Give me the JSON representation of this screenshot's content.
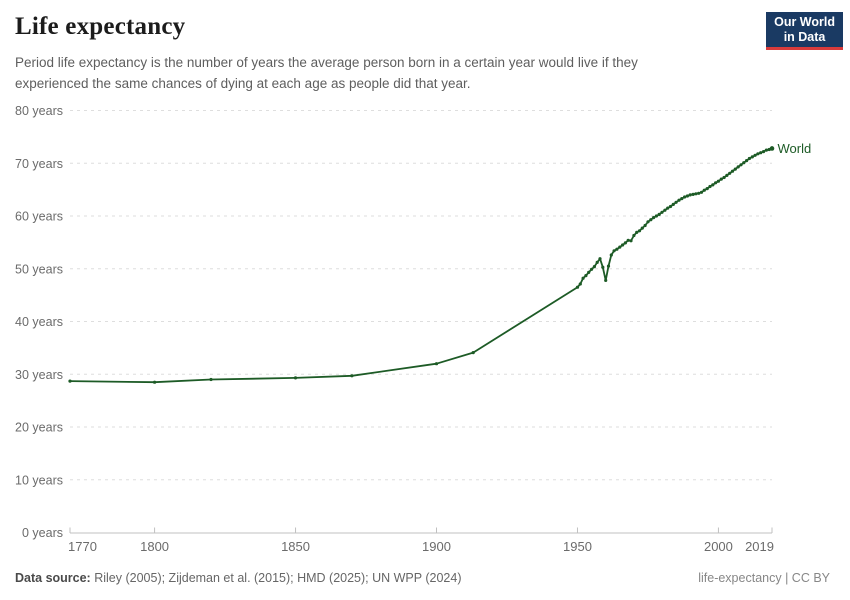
{
  "header": {
    "title": "Life expectancy",
    "subtitle_line1": "Period life expectancy is the number of years the average person born in a certain year would live if they",
    "subtitle_line2": "experienced the same chances of dying at each age as people did that year."
  },
  "logo": {
    "line1": "Our World",
    "line2": "in Data",
    "bg_color": "#1a3a63",
    "accent_color": "#d93b3b"
  },
  "colors": {
    "line": "#1d5b26",
    "grid": "#dedede",
    "axis": "#c0c0c0",
    "tick_label": "#6b6b6b",
    "title": "#1c1c1c",
    "subtitle": "#5e5e5e"
  },
  "chart_data": {
    "type": "line",
    "title": "Life expectancy",
    "xlabel": "",
    "ylabel": "",
    "xlim": [
      1770,
      2019
    ],
    "ylim": [
      0,
      80
    ],
    "grid": "horizontal-dashed",
    "legend_position": "end-of-line",
    "x_ticks": [
      {
        "value": 1770,
        "label": "1770"
      },
      {
        "value": 1800,
        "label": "1800"
      },
      {
        "value": 1850,
        "label": "1850"
      },
      {
        "value": 1900,
        "label": "1900"
      },
      {
        "value": 1950,
        "label": "1950"
      },
      {
        "value": 2000,
        "label": "2000"
      },
      {
        "value": 2019,
        "label": "2019"
      }
    ],
    "y_ticks": [
      {
        "value": 0,
        "label": "0 years"
      },
      {
        "value": 10,
        "label": "10 years"
      },
      {
        "value": 20,
        "label": "20 years"
      },
      {
        "value": 30,
        "label": "30 years"
      },
      {
        "value": 40,
        "label": "40 years"
      },
      {
        "value": 50,
        "label": "50 years"
      },
      {
        "value": 60,
        "label": "60 years"
      },
      {
        "value": 70,
        "label": "70 years"
      },
      {
        "value": 80,
        "label": "80 years"
      }
    ],
    "series": [
      {
        "name": "World",
        "color": "#1d5b26",
        "points": [
          [
            1770,
            28.7
          ],
          [
            1800,
            28.5
          ],
          [
            1820,
            29.0
          ],
          [
            1850,
            29.3
          ],
          [
            1870,
            29.7
          ],
          [
            1900,
            32.0
          ],
          [
            1913,
            34.1
          ],
          [
            1950,
            46.5
          ],
          [
            1951,
            47.1
          ],
          [
            1952,
            48.2
          ],
          [
            1953,
            48.7
          ],
          [
            1954,
            49.3
          ],
          [
            1955,
            49.9
          ],
          [
            1956,
            50.4
          ],
          [
            1957,
            51.2
          ],
          [
            1958,
            51.9
          ],
          [
            1959,
            50.3
          ],
          [
            1960,
            47.8
          ],
          [
            1961,
            50.5
          ],
          [
            1962,
            52.6
          ],
          [
            1963,
            53.4
          ],
          [
            1964,
            53.7
          ],
          [
            1965,
            54.1
          ],
          [
            1966,
            54.5
          ],
          [
            1967,
            54.9
          ],
          [
            1968,
            55.4
          ],
          [
            1969,
            55.3
          ],
          [
            1970,
            56.3
          ],
          [
            1971,
            56.9
          ],
          [
            1972,
            57.2
          ],
          [
            1973,
            57.7
          ],
          [
            1974,
            58.2
          ],
          [
            1975,
            58.9
          ],
          [
            1976,
            59.3
          ],
          [
            1977,
            59.7
          ],
          [
            1978,
            60.0
          ],
          [
            1979,
            60.3
          ],
          [
            1980,
            60.7
          ],
          [
            1981,
            61.1
          ],
          [
            1982,
            61.5
          ],
          [
            1983,
            61.8
          ],
          [
            1984,
            62.2
          ],
          [
            1985,
            62.6
          ],
          [
            1986,
            63.0
          ],
          [
            1987,
            63.3
          ],
          [
            1988,
            63.6
          ],
          [
            1989,
            63.8
          ],
          [
            1990,
            64.0
          ],
          [
            1991,
            64.1
          ],
          [
            1992,
            64.2
          ],
          [
            1993,
            64.3
          ],
          [
            1994,
            64.5
          ],
          [
            1995,
            64.9
          ],
          [
            1996,
            65.2
          ],
          [
            1997,
            65.6
          ],
          [
            1998,
            65.9
          ],
          [
            1999,
            66.3
          ],
          [
            2000,
            66.6
          ],
          [
            2001,
            67.0
          ],
          [
            2002,
            67.3
          ],
          [
            2003,
            67.7
          ],
          [
            2004,
            68.1
          ],
          [
            2005,
            68.5
          ],
          [
            2006,
            68.9
          ],
          [
            2007,
            69.3
          ],
          [
            2008,
            69.7
          ],
          [
            2009,
            70.1
          ],
          [
            2010,
            70.5
          ],
          [
            2011,
            70.9
          ],
          [
            2012,
            71.2
          ],
          [
            2013,
            71.5
          ],
          [
            2014,
            71.8
          ],
          [
            2015,
            72.0
          ],
          [
            2016,
            72.2
          ],
          [
            2017,
            72.5
          ],
          [
            2018,
            72.6
          ],
          [
            2019,
            72.8
          ]
        ]
      }
    ]
  },
  "footer": {
    "data_source_label": "Data source:",
    "data_source_text": "Riley (2005); Zijdeman et al. (2015); HMD (2025); UN WPP (2024)",
    "right": "life-expectancy | CC BY"
  }
}
